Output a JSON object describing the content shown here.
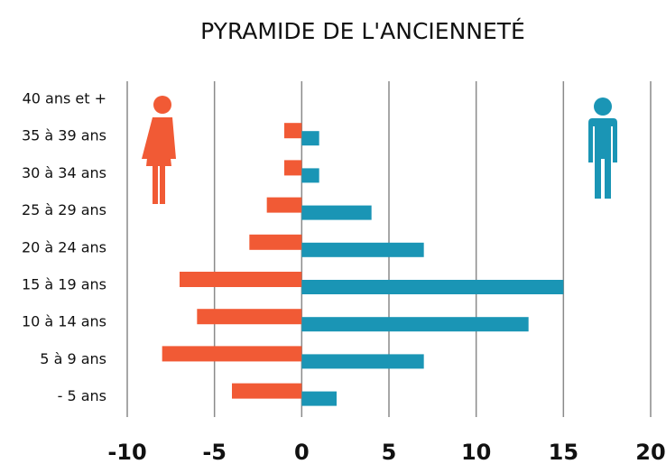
{
  "chart_data": {
    "type": "bar",
    "orientation": "horizontal",
    "title": "PYRAMIDE DE L'ANCIENNETÉ",
    "categories": [
      "40 ans et +",
      "35 à 39 ans",
      "30 à 34 ans",
      "25 à 29 ans",
      "20 à 24 ans",
      "15 à 19 ans",
      "10 à 14 ans",
      "5 à 9 ans",
      "- 5 ans"
    ],
    "series": [
      {
        "color": "#f15a35",
        "values": [
          0,
          -1,
          -1,
          -2,
          -3,
          -7,
          -6,
          -8,
          -4
        ]
      },
      {
        "color": "#1a95b5",
        "values": [
          0,
          1,
          1,
          4,
          7,
          15,
          13,
          7,
          2
        ]
      }
    ],
    "xlim": [
      -10,
      20
    ],
    "xticks": [
      -10,
      -5,
      0,
      5,
      10,
      15,
      20
    ],
    "grid": true
  }
}
